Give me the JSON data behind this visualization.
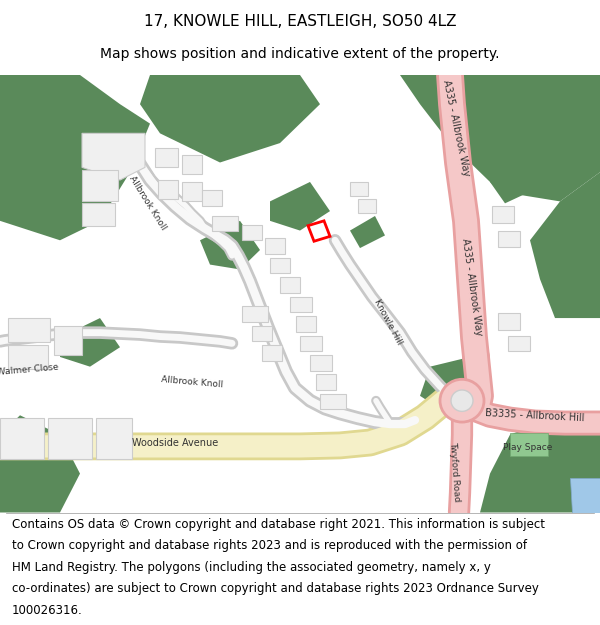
{
  "title_line1": "17, KNOWLE HILL, EASTLEIGH, SO50 4LZ",
  "title_line2": "Map shows position and indicative extent of the property.",
  "footer_lines": [
    "Contains OS data © Crown copyright and database right 2021. This information is subject",
    "to Crown copyright and database rights 2023 and is reproduced with the permission of",
    "HM Land Registry. The polygons (including the associated geometry, namely x, y",
    "co-ordinates) are subject to Crown copyright and database rights 2023 Ordnance Survey",
    "100026316."
  ],
  "title_fontsize": 11,
  "subtitle_fontsize": 10,
  "footer_fontsize": 8.5,
  "fig_width": 6.0,
  "fig_height": 6.25,
  "title_color": "#000000",
  "footer_color": "#000000",
  "green_color": "#5a8a5a",
  "road_pink": "#f5c8c8",
  "road_pink_outline": "#e8a0a0",
  "road_grey": "#f0f0f0",
  "road_grey_outline": "#d0d0d0",
  "yellow_road": "#f5f0c8",
  "yellow_road_outline": "#e0d890",
  "building_color": "#f0f0f0",
  "building_outline": "#cccccc",
  "highlight_color": "#ff0000",
  "blue_feature": "#a0c8e8",
  "play_space_color": "#90c890",
  "label_color": "#333333"
}
